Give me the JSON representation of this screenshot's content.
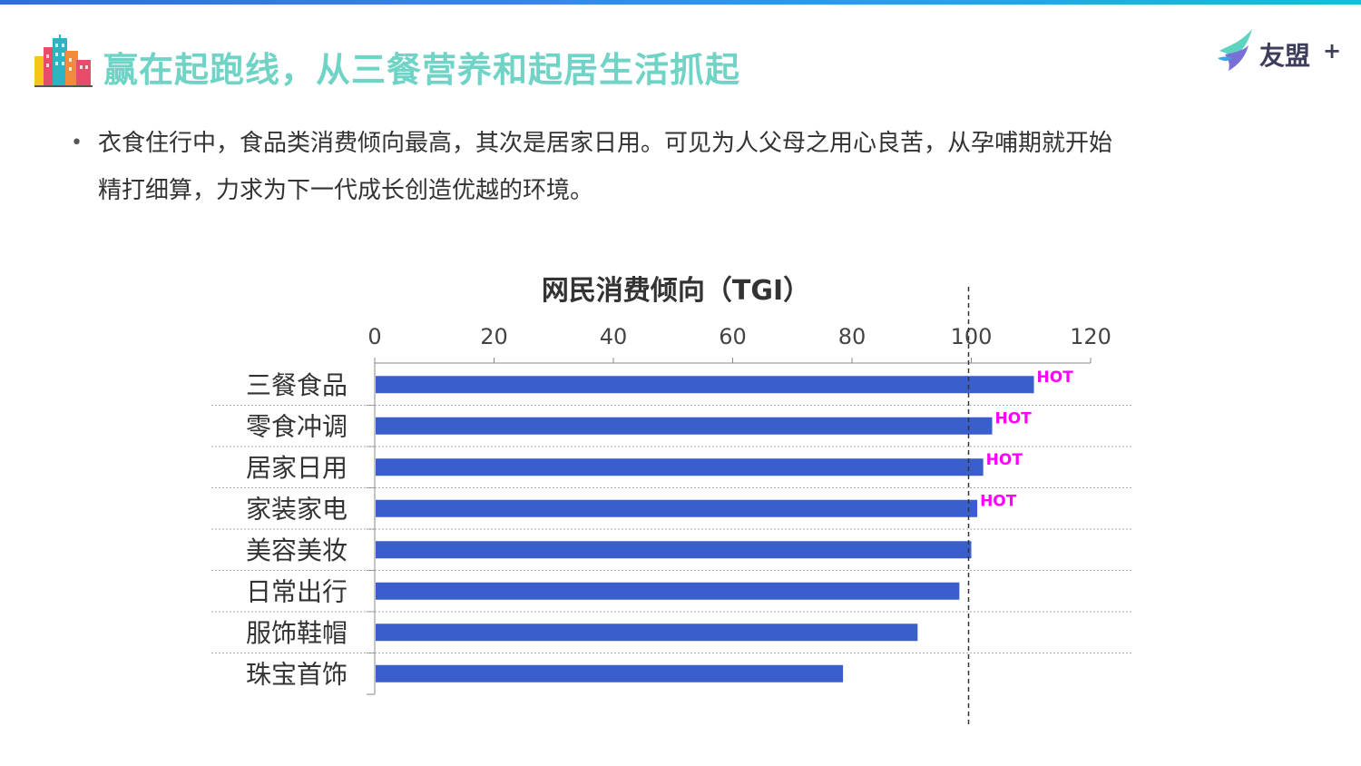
{
  "header": {
    "title": "赢在起跑线，从三餐营养和起居生活抓起",
    "title_color": "#6fd3c6",
    "icon": "city-buildings-icon",
    "logo": {
      "text": "友盟",
      "plus": "+",
      "icon": "umeng-bird-logo-icon"
    }
  },
  "description": {
    "bullet": "•",
    "lines": [
      "衣食住行中，食品类消费倾向最高，其次是居家日用。可见为人父母之用心良苦，从孕哺期就开始",
      "精打细算，力求为下一代成长创造优越的环境。"
    ]
  },
  "chart_data": {
    "type": "bar",
    "orientation": "horizontal",
    "title": "网民消费倾向（TGI）",
    "categories": [
      "三餐食品",
      "零食冲调",
      "居家日用",
      "家装家电",
      "美容美妆",
      "日常出行",
      "服饰鞋帽",
      "珠宝首饰"
    ],
    "values": [
      110.5,
      103.5,
      102,
      101,
      100,
      98,
      91,
      78.5
    ],
    "badges": [
      "HOT",
      "HOT",
      "HOT",
      "HOT",
      "",
      "",
      "",
      ""
    ],
    "badge_color": "#ff00ff",
    "bar_color": "#3a5fcd",
    "x_ticks": [
      0,
      20,
      40,
      60,
      80,
      100,
      120
    ],
    "xlim": [
      0,
      120
    ],
    "reference_line": 100,
    "axis_position": "top",
    "grid": "dashed-horizontal-separators"
  }
}
